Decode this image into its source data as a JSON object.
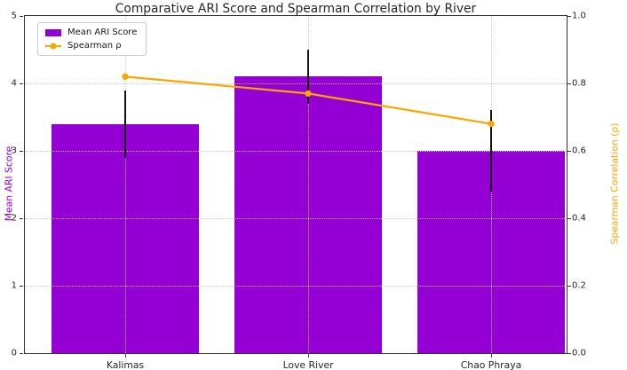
{
  "chart_data": {
    "type": "bar",
    "title": "Comparative ARI Score and Spearman Correlation by River",
    "categories": [
      "Kalimas",
      "Love River",
      "Chao Phraya"
    ],
    "series": [
      {
        "name": "Mean ARI Score",
        "type": "bar",
        "axis": "left",
        "values": [
          3.4,
          4.1,
          3.0
        ],
        "error": [
          0.5,
          0.4,
          0.6
        ],
        "color": "#9400d3"
      },
      {
        "name": "Spearman ρ",
        "type": "line",
        "axis": "right",
        "values": [
          0.82,
          0.77,
          0.68
        ],
        "color": "#ffa500"
      }
    ],
    "left_axis": {
      "label": "Mean ARI Score",
      "color": "#9400d3",
      "range": [
        0,
        5
      ],
      "ticks": [
        0,
        1,
        2,
        3,
        4,
        5
      ]
    },
    "right_axis": {
      "label": "Spearman Correlation (ρ)",
      "color": "#ffa500",
      "range": [
        0.0,
        1.0
      ],
      "ticks": [
        0.0,
        0.2,
        0.4,
        0.6,
        0.8,
        1.0
      ]
    },
    "legend": {
      "position": "upper left",
      "entries": [
        "Mean ARI Score",
        "Spearman ρ"
      ]
    },
    "grid": {
      "style": "dotted",
      "axes": "both",
      "color": "#cccccc"
    },
    "error_bar_color": "#111111",
    "background": "#ffffff"
  }
}
